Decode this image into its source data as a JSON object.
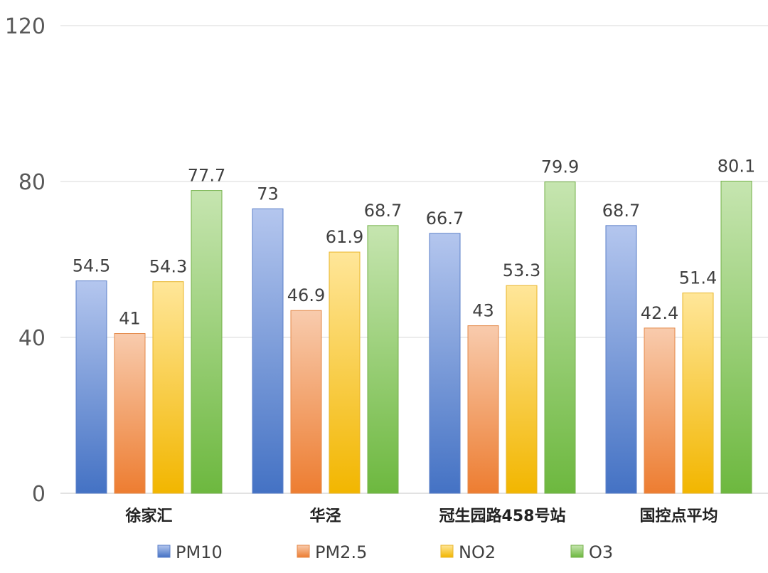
{
  "chart_data": {
    "type": "bar",
    "categories": [
      "徐家汇",
      "华泾",
      "冠生园路458号站",
      "国控点平均"
    ],
    "series": [
      {
        "name": "PM10",
        "values": [
          54.5,
          73,
          66.7,
          68.7
        ],
        "color_top": "#B4C6EE",
        "color_bottom": "#4472C4",
        "stroke": "#5B7FC8"
      },
      {
        "name": "PM2.5",
        "values": [
          41,
          46.9,
          43,
          42.4
        ],
        "color_top": "#F8CBAD",
        "color_bottom": "#ED7D31",
        "stroke": "#E4894A"
      },
      {
        "name": "NO2",
        "values": [
          54.3,
          61.9,
          53.3,
          51.4
        ],
        "color_top": "#FFE699",
        "color_bottom": "#F2B600",
        "stroke": "#E8B52A"
      },
      {
        "name": "O3",
        "values": [
          77.7,
          68.7,
          79.9,
          80.1
        ],
        "color_top": "#C6E5B0",
        "color_bottom": "#6DB83F",
        "stroke": "#74B14A"
      }
    ],
    "data_labels": [
      [
        "54.5",
        "73",
        "66.7",
        "68.7"
      ],
      [
        "41",
        "46.9",
        "43",
        "42.4"
      ],
      [
        "54.3",
        "61.9",
        "53.3",
        "51.4"
      ],
      [
        "77.7",
        "68.7",
        "79.9",
        "80.1"
      ]
    ],
    "y_ticks": [
      "0",
      "40",
      "80",
      "120"
    ],
    "ylim": [
      0,
      120
    ],
    "grid": true,
    "legend_position": "bottom"
  }
}
